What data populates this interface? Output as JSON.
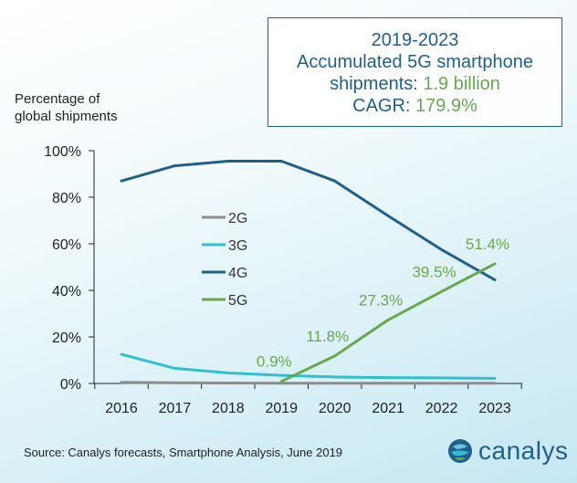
{
  "callout": {
    "line1": "2019-2023",
    "line2": "Accumulated 5G smartphone",
    "line3_label": "shipments: ",
    "line3_value": "1.9 billion",
    "line4_label": "CAGR: ",
    "line4_value": "179.9%"
  },
  "ylabel_line1": "Percentage of",
  "ylabel_line2": "global shipments",
  "source": "Source: Canalys forecasts, Smartphone Analysis, June 2019",
  "logo": {
    "text": "canalys",
    "icon": "canalys-globe-icon"
  },
  "colors": {
    "2G": "#8c8c8c",
    "3G": "#2fbfcf",
    "4G": "#1f5f8b",
    "5G": "#6aa84f"
  },
  "chart_data": {
    "type": "line",
    "x": [
      2016,
      2017,
      2018,
      2019,
      2020,
      2021,
      2022,
      2023
    ],
    "ylim": [
      0,
      100
    ],
    "yticks": [
      "0%",
      "20%",
      "40%",
      "60%",
      "80%",
      "100%"
    ],
    "xticks": [
      "2016",
      "2017",
      "2018",
      "2019",
      "2020",
      "2021",
      "2022",
      "2023"
    ],
    "series": [
      {
        "name": "2G",
        "values": [
          0.5,
          0.3,
          0.2,
          0.1,
          0.1,
          0.1,
          0.1,
          0.1
        ]
      },
      {
        "name": "3G",
        "values": [
          12.5,
          6.5,
          4.5,
          3.5,
          2.8,
          2.5,
          2.4,
          2.2
        ]
      },
      {
        "name": "4G",
        "values": [
          87,
          93.5,
          95.5,
          95.5,
          87,
          72,
          57.5,
          44.5
        ]
      },
      {
        "name": "5G",
        "values": [
          null,
          null,
          null,
          0.9,
          11.8,
          27.3,
          39.5,
          51.4
        ]
      }
    ],
    "data_labels": {
      "series": "5G",
      "labels": [
        "0.9%",
        "11.8%",
        "27.3%",
        "39.5%",
        "51.4%"
      ],
      "years": [
        2019,
        2020,
        2021,
        2022,
        2023
      ]
    },
    "legend": [
      "2G",
      "3G",
      "4G",
      "5G"
    ]
  }
}
